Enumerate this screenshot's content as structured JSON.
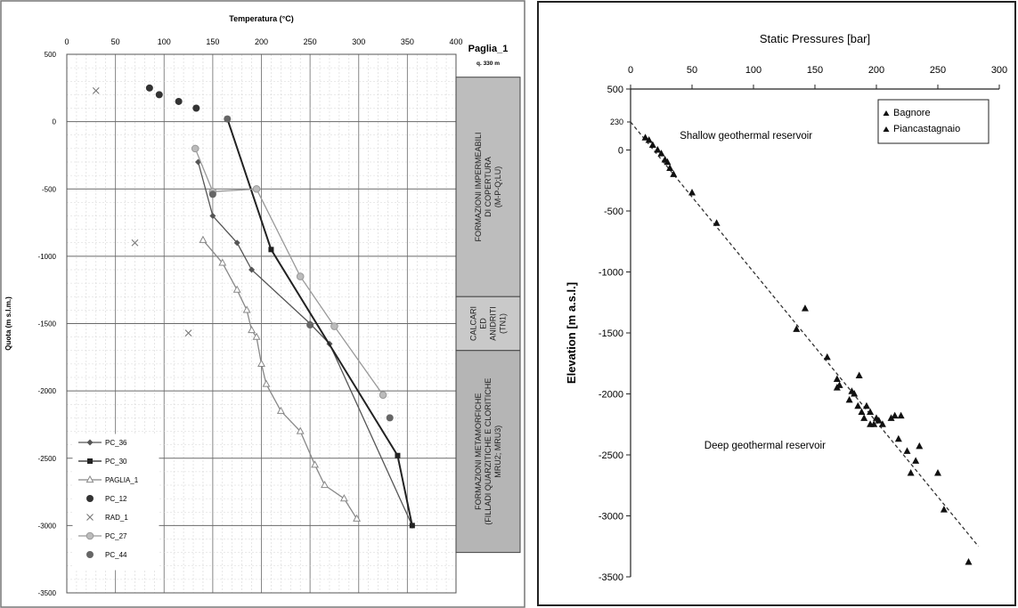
{
  "chart_data": [
    {
      "type": "line",
      "title": "Temperatura (°C)",
      "ylabel": "Quota (m s.l.m.)",
      "xlim": [
        0,
        400
      ],
      "ylim": [
        -3500,
        500
      ],
      "x_ticks": [
        "0",
        "50",
        "100",
        "150",
        "200",
        "250",
        "300",
        "350",
        "400"
      ],
      "y_ticks": [
        "500",
        "0",
        "-500",
        "-1000",
        "-1500",
        "-2000",
        "-2500",
        "-3000",
        "-3500"
      ],
      "grid": true,
      "legend_position": "bottom-left",
      "well": {
        "name": "Paglia_1",
        "elevation": "q. 330 m"
      },
      "formations": [
        {
          "label": "FORMAZIONI IMPERMEABILI DI COPERTURA (M-P-Q;LU)",
          "lines": [
            "FORMAZIONI IMPERMEABILI",
            "DI COPERTURA",
            "(M-P-Q;LU)"
          ],
          "top": 330,
          "bottom": -1300,
          "color": "#bdbdbd"
        },
        {
          "label": "CALCARI ED ANIDRITI (TN1)",
          "lines": [
            "CALCARI",
            "ED",
            "ANIDRITI",
            "(TN1)"
          ],
          "top": -1300,
          "bottom": -1700,
          "color": "#c9c9c9"
        },
        {
          "label": "FORMAZIONI METAMORFICHE (FILLADI QUARZITICHE E CLORITICHE MRU2; MRU3)",
          "lines": [
            "FORMAZIONI METAMORFICHE",
            "(FILLADI QUARZITICHE E CLORITICHE",
            "MRU2; MRU3)"
          ],
          "top": -1700,
          "bottom": -3200,
          "color": "#b5b5b5"
        }
      ],
      "series": [
        {
          "name": "PC_36",
          "color": "#555555",
          "marker": "diamond",
          "line": true,
          "x": [
            135,
            150,
            175,
            190,
            250,
            270,
            355
          ],
          "y": [
            -300,
            -700,
            -900,
            -1100,
            -1500,
            -1650,
            -3000
          ]
        },
        {
          "name": "PC_30",
          "color": "#222222",
          "marker": "square",
          "line": true,
          "x": [
            165,
            210,
            340,
            355
          ],
          "y": [
            20,
            -950,
            -2480,
            -3000
          ]
        },
        {
          "name": "PAGLIA_1",
          "color": "#888888",
          "marker": "triangle",
          "line": true,
          "x": [
            140,
            160,
            175,
            185,
            190,
            195,
            200,
            205,
            220,
            240,
            255,
            265,
            285,
            298
          ],
          "y": [
            -880,
            -1050,
            -1250,
            -1400,
            -1550,
            -1600,
            -1800,
            -1950,
            -2150,
            -2300,
            -2550,
            -2700,
            -2800,
            -2950
          ]
        },
        {
          "name": "PC_12",
          "color": "#333333",
          "marker": "circle",
          "line": false,
          "x": [
            85,
            95,
            115,
            133
          ],
          "y": [
            250,
            200,
            150,
            100
          ]
        },
        {
          "name": "RAD_1",
          "color": "#777777",
          "marker": "x",
          "line": false,
          "x": [
            30,
            70,
            125
          ],
          "y": [
            230,
            -900,
            -1570
          ]
        },
        {
          "name": "PC_27",
          "color": "#999999",
          "marker": "circle-open",
          "line": true,
          "x": [
            132,
            150,
            195,
            240,
            275,
            325
          ],
          "y": [
            -200,
            -520,
            -500,
            -1150,
            -1520,
            -2030
          ]
        },
        {
          "name": "PC_44",
          "color": "#666666",
          "marker": "circle",
          "line": false,
          "x": [
            165,
            150,
            250,
            332
          ],
          "y": [
            20,
            -540,
            -1510,
            -2200
          ]
        }
      ]
    },
    {
      "type": "scatter",
      "title": "Static Pressures [bar]",
      "ylabel": "Elevation [m a.s.l.]",
      "xlim": [
        0,
        300
      ],
      "ylim": [
        -3500,
        500
      ],
      "x_ticks": [
        "0",
        "50",
        "100",
        "150",
        "200",
        "250",
        "300"
      ],
      "y_ticks": [
        "500",
        "0",
        "-500",
        "-1000",
        "-1500",
        "-2000",
        "-2500",
        "-3000",
        "-3500"
      ],
      "extra_y_tick": {
        "value": 230,
        "label": "230"
      },
      "grid": false,
      "legend_position": "top-right",
      "legend": [
        "Bagnore",
        "Piancastagnaio"
      ],
      "annotations": [
        {
          "text": "Shallow geothermal reservoir",
          "x": 40,
          "y": 90
        },
        {
          "text": "Deep geothermal reservoir",
          "x": 60,
          "y": -2450
        }
      ],
      "trend_line": {
        "x": [
          0,
          283
        ],
        "y": [
          230,
          -3250
        ]
      },
      "points": {
        "x": [
          12,
          15,
          18,
          22,
          25,
          28,
          30,
          32,
          35,
          50,
          70,
          135,
          142,
          160,
          168,
          168,
          170,
          178,
          180,
          182,
          185,
          186,
          188,
          190,
          192,
          195,
          195,
          198,
          200,
          202,
          205,
          212,
          215,
          218,
          220,
          225,
          228,
          232,
          235,
          250,
          255,
          275
        ],
        "y": [
          100,
          80,
          40,
          0,
          -30,
          -80,
          -100,
          -150,
          -200,
          -350,
          -600,
          -1470,
          -1300,
          -1700,
          -1880,
          -1950,
          -1930,
          -2050,
          -1980,
          -2000,
          -2100,
          -1850,
          -2150,
          -2200,
          -2100,
          -2150,
          -2250,
          -2250,
          -2200,
          -2220,
          -2250,
          -2200,
          -2180,
          -2370,
          -2180,
          -2470,
          -2650,
          -2550,
          -2430,
          -2650,
          -2950,
          -3380
        ]
      }
    }
  ]
}
